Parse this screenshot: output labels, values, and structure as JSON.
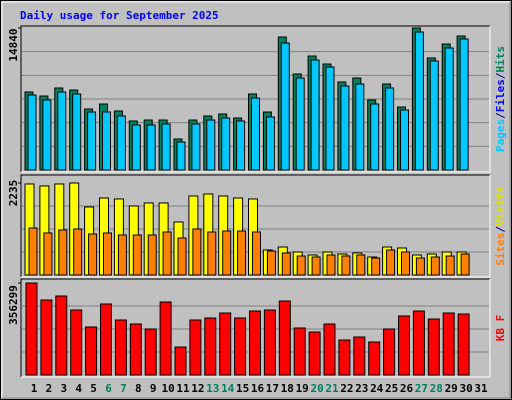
{
  "title": "Daily usage for September 2025",
  "categories": [
    "1",
    "2",
    "3",
    "4",
    "5",
    "6",
    "7",
    "8",
    "9",
    "10",
    "11",
    "12",
    "13",
    "14",
    "15",
    "16",
    "17",
    "18",
    "19",
    "20",
    "21",
    "22",
    "23",
    "24",
    "25",
    "26",
    "27",
    "28",
    "29",
    "30",
    "31"
  ],
  "weekend_categories": [
    "6",
    "7",
    "13",
    "14",
    "20",
    "21",
    "27",
    "28"
  ],
  "weekday_color": "#000000",
  "weekend_color": "#00805c",
  "chart_data": [
    {
      "type": "bar",
      "ylim": [
        0,
        14840
      ],
      "yticks": [
        14840
      ],
      "grid_divisions": 6,
      "axis_label": [
        {
          "text": "Pages",
          "color": "#00c8ff"
        },
        {
          "text": "/",
          "color": "#000080"
        },
        {
          "text": "Files",
          "color": "#0000ff"
        },
        {
          "text": "/",
          "color": "#000080"
        },
        {
          "text": "Hits",
          "color": "#00805c"
        }
      ],
      "series": [
        {
          "color": "#00805c",
          "values": [
            8151,
            7733,
            8569,
            8360,
            6375,
            6897,
            6166,
            5121,
            5225,
            5225,
            3240,
            5225,
            5643,
            5852,
            5434,
            7942,
            6061,
            13899,
            10032,
            11913,
            11077,
            9196,
            9614,
            7315,
            8987,
            6584,
            14840,
            11704,
            13167,
            14003,
            null
          ]
        },
        {
          "color": "#00c8ff",
          "values": [
            7838,
            7315,
            8151,
            7942,
            6061,
            6061,
            5643,
            4703,
            4703,
            4807,
            2926,
            4807,
            5225,
            5434,
            5121,
            7524,
            5539,
            13272,
            9614,
            11495,
            10764,
            8778,
            8987,
            6897,
            8569,
            6270,
            14421,
            11391,
            12749,
            13690,
            null
          ]
        }
      ]
    },
    {
      "type": "bar",
      "ylim": [
        0,
        2235
      ],
      "yticks": [
        2235
      ],
      "grid_divisions": 4,
      "axis_label": [
        {
          "text": "Sites",
          "color": "#ff8000"
        },
        {
          "text": "/",
          "color": "#000080"
        },
        {
          "text": "Visits",
          "color": "#e0e000"
        }
      ],
      "series": [
        {
          "color": "#ffff00",
          "values": [
            2211,
            2163,
            2211,
            2235,
            1652,
            1871,
            1847,
            1677,
            1750,
            1750,
            1288,
            1920,
            1968,
            1920,
            1871,
            1847,
            608,
            680,
            559,
            486,
            559,
            510,
            535,
            437,
            680,
            656,
            486,
            510,
            559,
            559,
            null
          ]
        },
        {
          "color": "#ff8000",
          "values": [
            1142,
            1021,
            1094,
            1118,
            996,
            1021,
            972,
            972,
            972,
            1045,
            899,
            1118,
            1045,
            1069,
            1069,
            1045,
            583,
            535,
            462,
            437,
            486,
            462,
            486,
            413,
            608,
            559,
            413,
            437,
            462,
            510,
            null
          ]
        }
      ]
    },
    {
      "type": "bar",
      "ylim": [
        0,
        356299
      ],
      "yticks": [
        356299
      ],
      "grid_divisions": 4,
      "axis_label": [
        {
          "text": "KB F",
          "color": "#ff0000"
        }
      ],
      "series": [
        {
          "color": "#ff0000",
          "values": [
            356299,
            290475,
            305967,
            251745,
            185904,
            274983,
            213015,
            197523,
            178158,
            282729,
            108444,
            213015,
            220761,
            240126,
            220761,
            247872,
            251745,
            286602,
            182031,
            166539,
            197523,
            135555,
            147174,
            127809,
            178158,
            228507,
            247872,
            216888,
            240126,
            236253,
            null
          ]
        }
      ]
    }
  ]
}
